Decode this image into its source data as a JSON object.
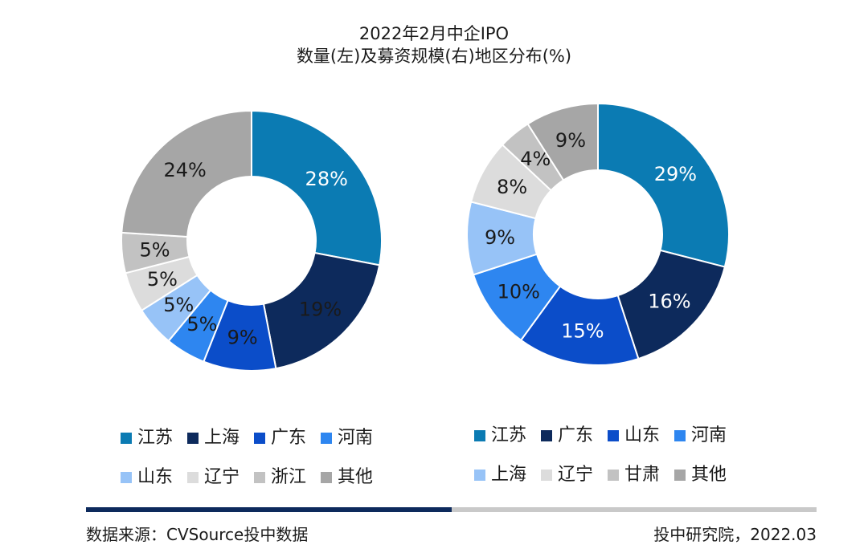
{
  "title": {
    "line1": "2022年2月中企IPO",
    "line2": "数量(左)及募资规模(右)地区分布(%)"
  },
  "chart_data": [
    {
      "type": "pie",
      "subtype": "donut",
      "title": "数量",
      "unit": "%",
      "categories": [
        "江苏",
        "上海",
        "广东",
        "河南",
        "山东",
        "辽宁",
        "浙江",
        "其他"
      ],
      "values": [
        28,
        19,
        9,
        5,
        5,
        5,
        5,
        24
      ],
      "labels": [
        "28%",
        "19%",
        "9%",
        "5%",
        "5%",
        "5%",
        "5%",
        "24%"
      ],
      "colors": [
        "#0b7bb3",
        "#0d2a5c",
        "#0b4dc9",
        "#2e86f0",
        "#97c3f7",
        "#dcdcdc",
        "#c2c2c2",
        "#a6a6a6"
      ],
      "label_colors": [
        "#ffffff",
        "#1a1a1a",
        "#1a1a1a",
        "#1a1a1a",
        "#1a1a1a",
        "#1a1a1a",
        "#1a1a1a",
        "#1a1a1a"
      ],
      "legend_position": "bottom"
    },
    {
      "type": "pie",
      "subtype": "donut",
      "title": "募资规模",
      "unit": "%",
      "categories": [
        "江苏",
        "广东",
        "山东",
        "河南",
        "上海",
        "辽宁",
        "甘肃",
        "其他"
      ],
      "values": [
        29,
        16,
        15,
        10,
        9,
        8,
        4,
        9
      ],
      "labels": [
        "29%",
        "16%",
        "15%",
        "10%",
        "9%",
        "8%",
        "4%",
        "9%"
      ],
      "colors": [
        "#0b7bb3",
        "#0d2a5c",
        "#0b4dc9",
        "#2e86f0",
        "#97c3f7",
        "#dcdcdc",
        "#c2c2c2",
        "#a6a6a6"
      ],
      "label_colors": [
        "#ffffff",
        "#ffffff",
        "#ffffff",
        "#1a1a1a",
        "#1a1a1a",
        "#1a1a1a",
        "#1a1a1a",
        "#1a1a1a"
      ],
      "legend_position": "bottom"
    }
  ],
  "footer": {
    "source": "数据来源：CVSource投中数据",
    "credit": "投中研究院，2022.03"
  }
}
